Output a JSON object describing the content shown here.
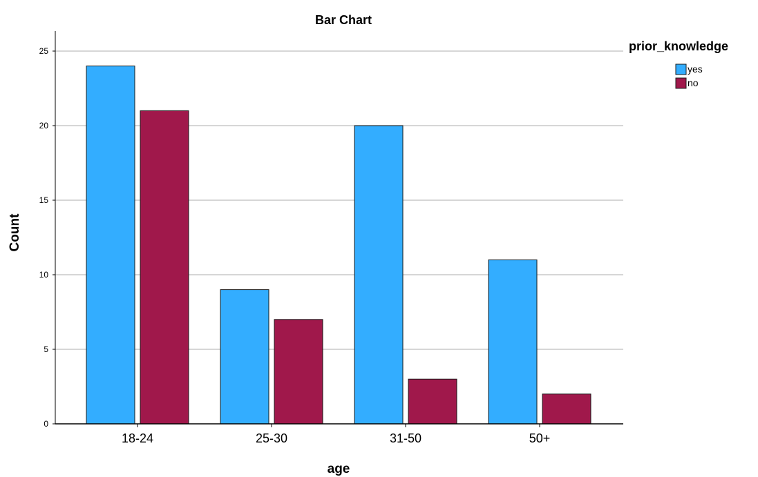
{
  "chart_data": {
    "type": "bar",
    "title": "Bar Chart",
    "xlabel": "age",
    "ylabel": "Count",
    "categories": [
      "18-24",
      "25-30",
      "31-50",
      "50+"
    ],
    "series": [
      {
        "name": "yes",
        "values": [
          24,
          9,
          20,
          11
        ],
        "color": "#33adff"
      },
      {
        "name": "no",
        "values": [
          21,
          7,
          3,
          2
        ],
        "color": "#a0184b"
      }
    ],
    "ylim": [
      0,
      25
    ],
    "yticks": [
      0,
      5,
      10,
      15,
      20,
      25
    ],
    "grid": true,
    "legend": {
      "title": "prior_knowledge",
      "position": "top-right"
    }
  }
}
